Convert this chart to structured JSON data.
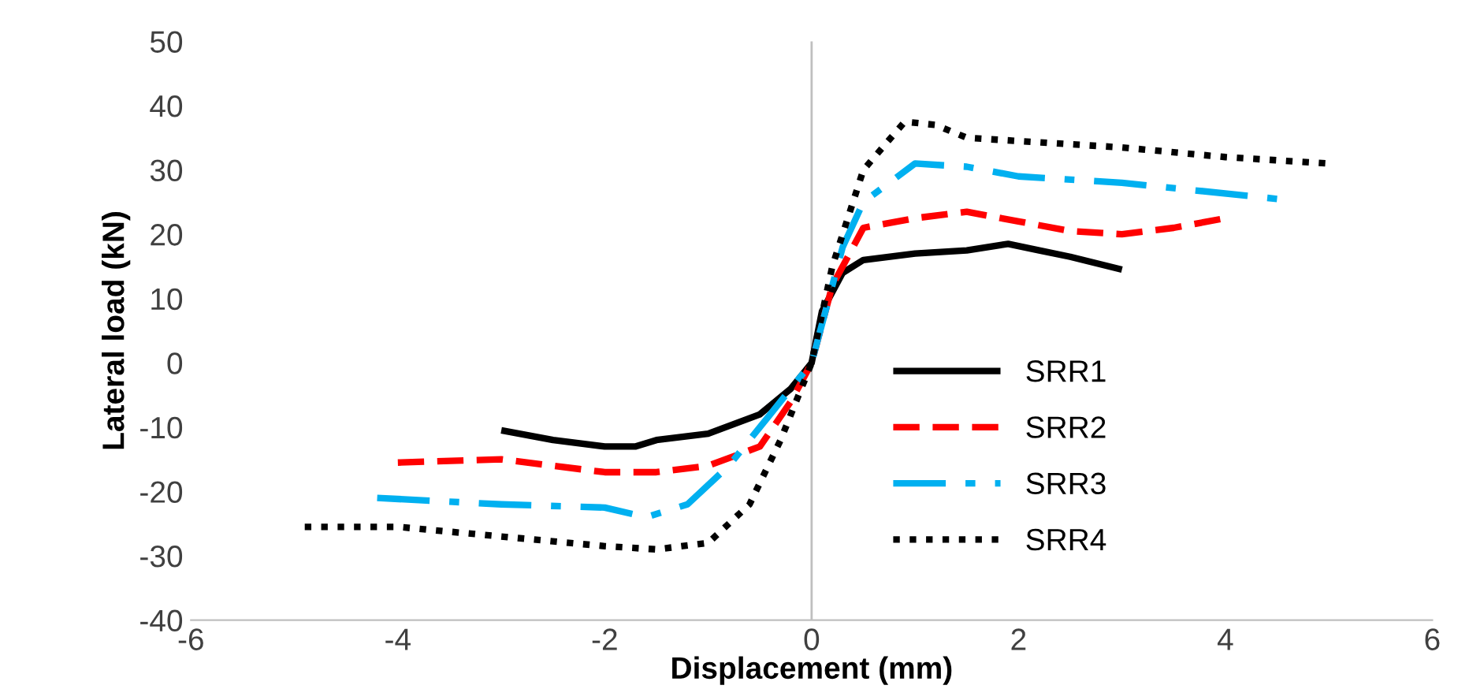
{
  "chart_data": {
    "type": "line",
    "xlabel": "Displacement (mm)",
    "ylabel": "Lateral load (kN)",
    "xlim": [
      -6,
      6
    ],
    "xticks": [
      -6,
      -4,
      -2,
      0,
      2,
      4,
      6
    ],
    "ylim": [
      -40,
      50
    ],
    "yticks": [
      -40,
      -30,
      -20,
      -10,
      0,
      10,
      20,
      30,
      40,
      50
    ],
    "grid": false,
    "legend": "right",
    "marker": "none",
    "ref_lines": [
      {
        "axis": "x",
        "value": 0,
        "color": "#bfbfbf"
      }
    ],
    "series": [
      {
        "name": "SRR1",
        "color": "#000000",
        "line_style": "solid",
        "x": [
          -3,
          -2.5,
          -2,
          -1.7,
          -1.5,
          -1,
          -0.5,
          -0.2,
          0,
          0.1,
          0.3,
          0.5,
          1,
          1.5,
          1.9,
          2.2,
          2.5,
          3
        ],
        "values": [
          -10.5,
          -12,
          -13,
          -13,
          -12,
          -11,
          -8,
          -4,
          0,
          8,
          14,
          16,
          17,
          17.5,
          18.5,
          17.5,
          16.5,
          14.5
        ]
      },
      {
        "name": "SRR2",
        "color": "#ff0000",
        "line_style": "dashed",
        "x": [
          -4,
          -3,
          -2.5,
          -2,
          -1.5,
          -1,
          -0.5,
          -0.2,
          0,
          0.2,
          0.5,
          1,
          1.5,
          2,
          2.5,
          3,
          3.5,
          4
        ],
        "values": [
          -15.5,
          -15,
          -16,
          -17,
          -17,
          -16,
          -13,
          -6,
          0,
          12,
          21,
          22.5,
          23.5,
          22,
          20.5,
          20,
          21,
          22.5
        ]
      },
      {
        "name": "SRR3",
        "color": "#00b0f0",
        "line_style": "dashdot",
        "x": [
          -4.2,
          -3,
          -2,
          -1.6,
          -1.2,
          -0.8,
          -0.4,
          0,
          0.3,
          0.5,
          1,
          1.5,
          2,
          3,
          4.5
        ],
        "values": [
          -21,
          -22,
          -22.5,
          -24,
          -22,
          -16,
          -8,
          0,
          18,
          25,
          31,
          30.5,
          29,
          28,
          25.5
        ]
      },
      {
        "name": "SRR4",
        "color": "#000000",
        "line_style": "dotted",
        "x": [
          -4.9,
          -4,
          -3,
          -2,
          -1.5,
          -1,
          -0.6,
          -0.3,
          0,
          0.2,
          0.5,
          0.9,
          1.2,
          1.5,
          2,
          3,
          4,
          5
        ],
        "values": [
          -25.5,
          -25.5,
          -27,
          -28.5,
          -29,
          -28,
          -22,
          -12,
          0,
          15,
          30,
          37.5,
          37,
          35,
          34.5,
          33.5,
          32,
          31
        ]
      }
    ]
  }
}
